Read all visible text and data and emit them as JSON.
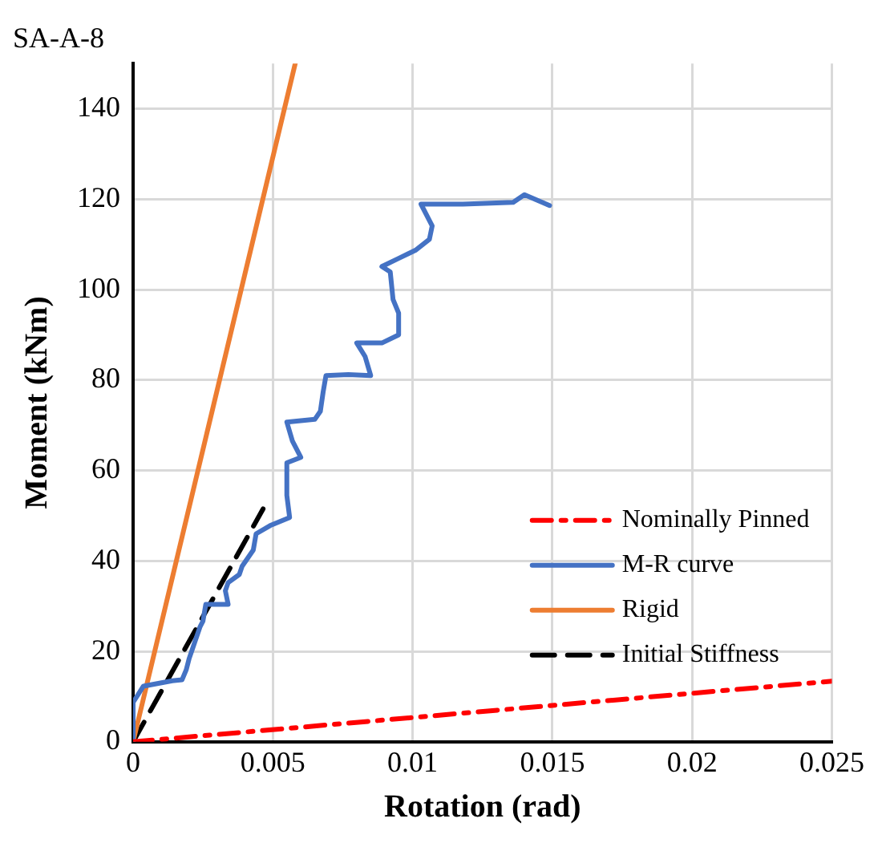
{
  "chart_data": {
    "type": "line",
    "title": "SA-A-8",
    "xlabel": "Rotation (rad)",
    "ylabel": "Moment (kNm)",
    "xlim": [
      0,
      0.025
    ],
    "xticks": [
      0,
      0.005,
      0.01,
      0.015,
      0.02,
      0.025
    ],
    "ylim": [
      0,
      150
    ],
    "yticks": [
      0,
      20,
      40,
      60,
      80,
      100,
      120,
      140
    ],
    "grid": true,
    "legend": "bottom right",
    "marker": "none",
    "series": [
      {
        "name": "Nominally Pinned",
        "color": "#ff0000",
        "line_style": "dashdot",
        "x": [
          0,
          0.025
        ],
        "values": [
          0,
          13.4
        ]
      },
      {
        "name": "M-R curve",
        "color": "#4472c4",
        "line_style": "solid",
        "x": [
          0,
          0,
          0.00037,
          0.0014,
          0.00175,
          0.0019,
          0.002,
          0.0022,
          0.0024,
          0.0025,
          0.0026,
          0.0034,
          0.0033,
          0.0034,
          0.0038,
          0.0039,
          0.0043,
          0.0044,
          0.0049,
          0.0056,
          0.0055,
          0.0055,
          0.006,
          0.0057,
          0.0055,
          0.0065,
          0.0067,
          0.0068,
          0.0069,
          0.0077,
          0.0085,
          0.0083,
          0.008,
          0.0089,
          0.0095,
          0.0095,
          0.0093,
          0.0092,
          0.0089,
          0.0095,
          0.0101,
          0.0106,
          0.0107,
          0.0103,
          0.0118,
          0.0136,
          0.014,
          0.0149
        ],
        "values": [
          0,
          8.7,
          12.3,
          13.5,
          13.7,
          15.9,
          18.3,
          21.9,
          25.5,
          26.7,
          30.4,
          30.4,
          33.4,
          35.2,
          37,
          38.8,
          42.4,
          46,
          47.8,
          49.6,
          54.5,
          61.7,
          62.9,
          66.5,
          70.7,
          71.3,
          73.1,
          77.4,
          81,
          81.2,
          81,
          85.2,
          88.2,
          88.2,
          90,
          94.8,
          97.8,
          103.9,
          105.1,
          106.9,
          108.7,
          111.1,
          114.1,
          118.9,
          118.9,
          119.3,
          121,
          118.6
        ]
      },
      {
        "name": "Rigid",
        "color": "#ed7d31",
        "line_style": "solid",
        "x": [
          0,
          0.0058
        ],
        "values": [
          0,
          150
        ]
      },
      {
        "name": "Initial Stiffness",
        "color": "#000000",
        "line_style": "dashed",
        "x": [
          0,
          0.00465
        ],
        "values": [
          0,
          51.5
        ]
      }
    ]
  }
}
